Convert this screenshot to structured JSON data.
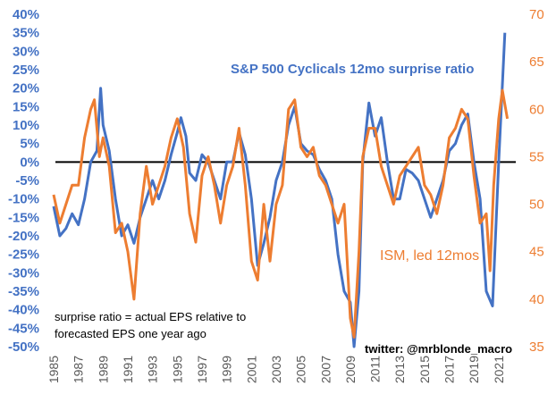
{
  "chart_data": {
    "type": "line",
    "title": "",
    "annotations": {
      "blue_label": "S&P 500 Cyclicals 12mo surprise ratio",
      "orange_label": "ISM, led 12mos",
      "note_line1": "surprise ratio = actual EPS relative to",
      "note_line2": "forecasted EPS one year ago",
      "credit": "twitter: @mrblonde_macro"
    },
    "left_axis": {
      "min": -50,
      "max": 40,
      "step": 5,
      "format": "percent",
      "ticks": [
        "40%",
        "35%",
        "30%",
        "25%",
        "20%",
        "15%",
        "10%",
        "5%",
        "0%",
        "-5%",
        "-10%",
        "-15%",
        "-20%",
        "-25%",
        "-30%",
        "-35%",
        "-40%",
        "-45%",
        "-50%"
      ]
    },
    "right_axis": {
      "min": 35,
      "max": 70,
      "step": 5,
      "ticks": [
        "70",
        "65",
        "60",
        "55",
        "50",
        "45",
        "40",
        "35"
      ]
    },
    "x_axis": {
      "min": 1985,
      "max": 2022,
      "ticks": [
        "1985",
        "1987",
        "1989",
        "1991",
        "1993",
        "1995",
        "1997",
        "1999",
        "2001",
        "2003",
        "2005",
        "2007",
        "2009",
        "2011",
        "2013",
        "2015",
        "2017",
        "2019",
        "2021"
      ]
    },
    "zero_line": 0,
    "colors": {
      "blue": "#4472C4",
      "orange": "#ED7D31"
    },
    "series": [
      {
        "name": "S&P 500 Cyclicals 12mo surprise ratio",
        "axis": "left",
        "color": "#4472C4",
        "x": [
          1985,
          1985.5,
          1986,
          1986.5,
          1987,
          1987.5,
          1988,
          1988.5,
          1988.8,
          1989,
          1989.5,
          1990,
          1990.5,
          1991,
          1991.5,
          1992,
          1992.5,
          1993,
          1993.5,
          1994,
          1994.5,
          1995,
          1995.3,
          1995.7,
          1996,
          1996.5,
          1997,
          1997.5,
          1998,
          1998.5,
          1999,
          1999.5,
          2000,
          2000.5,
          2001,
          2001.5,
          2002,
          2002.5,
          2003,
          2003.5,
          2004,
          2004.5,
          2005,
          2005.5,
          2006,
          2006.5,
          2007,
          2007.5,
          2008,
          2008.5,
          2009,
          2009.3,
          2009.7,
          2010,
          2010.5,
          2011,
          2011.5,
          2012,
          2012.5,
          2013,
          2013.5,
          2014,
          2014.5,
          2015,
          2015.5,
          2016,
          2016.5,
          2017,
          2017.5,
          2018,
          2018.5,
          2019,
          2019.5,
          2020,
          2020.5,
          2021,
          2021.5
        ],
        "values": [
          -12,
          -20,
          -18,
          -14,
          -17,
          -10,
          0,
          3,
          20,
          10,
          3,
          -10,
          -20,
          -17,
          -22,
          -15,
          -10,
          -5,
          -10,
          -5,
          2,
          8,
          12,
          7,
          -3,
          -5,
          2,
          0,
          -5,
          -10,
          0,
          0,
          8,
          2,
          -10,
          -28,
          -22,
          -15,
          -5,
          0,
          10,
          15,
          5,
          3,
          2,
          -2,
          -5,
          -10,
          -25,
          -35,
          -38,
          -50,
          -35,
          0,
          16,
          7,
          12,
          0,
          -10,
          -10,
          -2,
          -3,
          -5,
          -10,
          -15,
          -10,
          -5,
          3,
          5,
          10,
          13,
          0,
          -10,
          -35,
          -39,
          0,
          35
        ]
      },
      {
        "name": "ISM, led 12mos",
        "axis": "right",
        "color": "#ED7D31",
        "x": [
          1985,
          1985.5,
          1986,
          1986.5,
          1987,
          1987.5,
          1988,
          1988.3,
          1988.7,
          1989,
          1989.5,
          1990,
          1990.5,
          1991,
          1991.5,
          1992,
          1992.5,
          1993,
          1993.5,
          1994,
          1994.5,
          1995,
          1995.5,
          1996,
          1996.5,
          1997,
          1997.5,
          1998,
          1998.5,
          1999,
          1999.5,
          2000,
          2000.5,
          2001,
          2001.5,
          2002,
          2002.5,
          2003,
          2003.5,
          2004,
          2004.5,
          2005,
          2005.5,
          2006,
          2006.5,
          2007,
          2007.5,
          2008,
          2008.5,
          2009,
          2009.3,
          2009.7,
          2010,
          2010.5,
          2011,
          2011.5,
          2012,
          2012.5,
          2013,
          2013.5,
          2014,
          2014.5,
          2015,
          2015.5,
          2016,
          2016.5,
          2017,
          2017.5,
          2018,
          2018.5,
          2019,
          2019.5,
          2020,
          2020.3,
          2020.6,
          2021,
          2021.3,
          2021.7
        ],
        "values": [
          51,
          48,
          50,
          52,
          52,
          57,
          60,
          61,
          55,
          57,
          54,
          47,
          48,
          45,
          40,
          49,
          54,
          50,
          52,
          54,
          57,
          59,
          56,
          49,
          46,
          53,
          55,
          52,
          48,
          52,
          54,
          58,
          52,
          44,
          42,
          50,
          44,
          50,
          52,
          60,
          61,
          56,
          55,
          56,
          53,
          52,
          50,
          48,
          50,
          38,
          36,
          45,
          55,
          58,
          58,
          54,
          52,
          50,
          53,
          54,
          55,
          56,
          52,
          51,
          49,
          52,
          57,
          58,
          60,
          59,
          53,
          48,
          49,
          43,
          52,
          59,
          62,
          59
        ]
      }
    ]
  }
}
